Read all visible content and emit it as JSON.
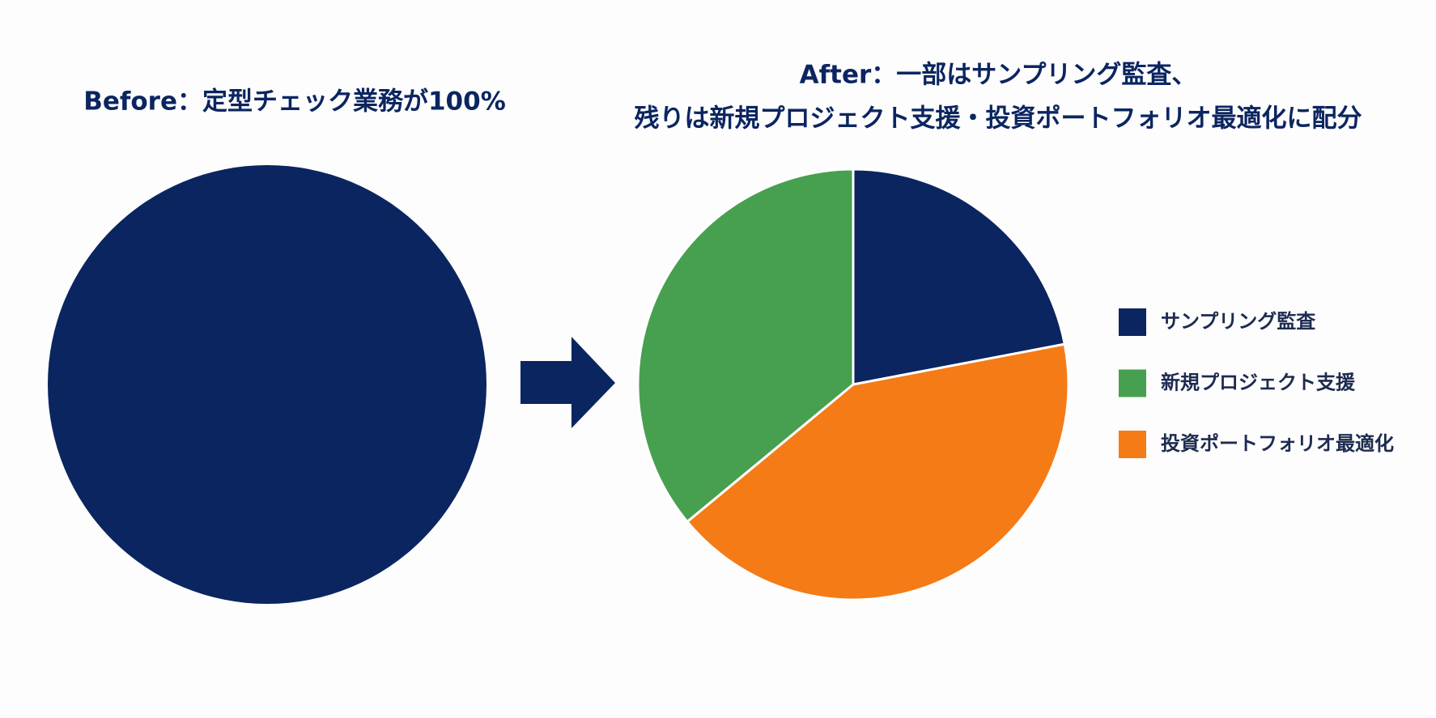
{
  "chart_data": [
    {
      "type": "pie",
      "title": [
        "Before：定型チェック業務が100%"
      ],
      "categories": [
        null
      ],
      "values": [
        100
      ],
      "colors": [
        "#0b2560"
      ]
    },
    {
      "type": "pie",
      "title": [
        "After：一部はサンプリング監査、",
        "残りは新規プロジェクト支援・投資ポートフォリオ最適化に配分"
      ],
      "categories": [
        "サンプリング監査",
        "新規プロジェクト支援",
        "投資ポートフォリオ最適化"
      ],
      "values": [
        22,
        36,
        42
      ],
      "colors": [
        "#0b2560",
        "#46a04f",
        "#f47b16"
      ],
      "legend": "right"
    }
  ]
}
